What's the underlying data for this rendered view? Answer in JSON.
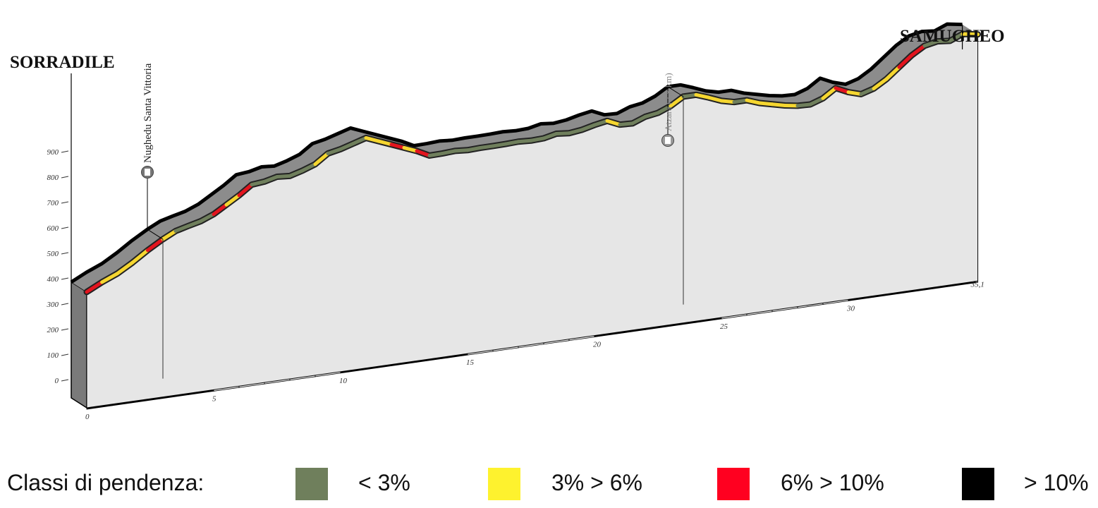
{
  "chart_data": {
    "type": "area",
    "x_unit": "km",
    "y_ticks": [
      0,
      100,
      200,
      300,
      400,
      500,
      600,
      700,
      800,
      900
    ],
    "x_ticks": [
      0,
      5,
      10,
      15,
      20,
      25,
      30
    ],
    "x_end_label": "35,1",
    "x_max": 35.1,
    "points": [
      {
        "x": 0.0,
        "y": 345,
        "grade": "red"
      },
      {
        "x": 0.6,
        "y": 375,
        "grade": "yellow"
      },
      {
        "x": 1.2,
        "y": 400,
        "grade": "yellow"
      },
      {
        "x": 1.8,
        "y": 435,
        "grade": "yellow"
      },
      {
        "x": 2.4,
        "y": 475,
        "grade": "red"
      },
      {
        "x": 3.0,
        "y": 510,
        "grade": "yellow"
      },
      {
        "x": 3.5,
        "y": 535,
        "grade": "green"
      },
      {
        "x": 4.0,
        "y": 548,
        "grade": "green"
      },
      {
        "x": 4.5,
        "y": 560,
        "grade": "green"
      },
      {
        "x": 5.0,
        "y": 580,
        "grade": "red"
      },
      {
        "x": 5.5,
        "y": 610,
        "grade": "yellow"
      },
      {
        "x": 6.0,
        "y": 640,
        "grade": "red"
      },
      {
        "x": 6.5,
        "y": 675,
        "grade": "green"
      },
      {
        "x": 7.0,
        "y": 680,
        "grade": "green"
      },
      {
        "x": 7.5,
        "y": 692,
        "grade": "green"
      },
      {
        "x": 8.0,
        "y": 688,
        "grade": "green"
      },
      {
        "x": 8.5,
        "y": 702,
        "grade": "green"
      },
      {
        "x": 9.0,
        "y": 720,
        "grade": "yellow"
      },
      {
        "x": 9.5,
        "y": 755,
        "grade": "green"
      },
      {
        "x": 10.0,
        "y": 765,
        "grade": "green"
      },
      {
        "x": 10.5,
        "y": 780,
        "grade": "green"
      },
      {
        "x": 11.0,
        "y": 795,
        "grade": "yellow"
      },
      {
        "x": 11.5,
        "y": 775,
        "grade": "yellow"
      },
      {
        "x": 12.0,
        "y": 755,
        "grade": "red"
      },
      {
        "x": 12.5,
        "y": 735,
        "grade": "yellow"
      },
      {
        "x": 13.0,
        "y": 715,
        "grade": "red"
      },
      {
        "x": 13.5,
        "y": 690,
        "grade": "green"
      },
      {
        "x": 14.0,
        "y": 691,
        "grade": "green"
      },
      {
        "x": 14.5,
        "y": 694,
        "grade": "green"
      },
      {
        "x": 15.0,
        "y": 690,
        "grade": "green"
      },
      {
        "x": 15.5,
        "y": 692,
        "grade": "green"
      },
      {
        "x": 16.0,
        "y": 692,
        "grade": "green"
      },
      {
        "x": 16.5,
        "y": 693,
        "grade": "green"
      },
      {
        "x": 17.0,
        "y": 695,
        "grade": "green"
      },
      {
        "x": 17.5,
        "y": 692,
        "grade": "green"
      },
      {
        "x": 18.0,
        "y": 694,
        "grade": "green"
      },
      {
        "x": 18.5,
        "y": 705,
        "grade": "green"
      },
      {
        "x": 19.0,
        "y": 700,
        "grade": "green"
      },
      {
        "x": 19.5,
        "y": 706,
        "grade": "green"
      },
      {
        "x": 20.0,
        "y": 718,
        "grade": "green"
      },
      {
        "x": 20.5,
        "y": 727,
        "grade": "yellow"
      },
      {
        "x": 21.0,
        "y": 705,
        "grade": "green"
      },
      {
        "x": 21.5,
        "y": 703,
        "grade": "green"
      },
      {
        "x": 22.0,
        "y": 722,
        "grade": "green"
      },
      {
        "x": 22.5,
        "y": 730,
        "grade": "green"
      },
      {
        "x": 23.0,
        "y": 750,
        "grade": "yellow"
      },
      {
        "x": 23.5,
        "y": 780,
        "grade": "green"
      },
      {
        "x": 24.0,
        "y": 780,
        "grade": "yellow"
      },
      {
        "x": 24.5,
        "y": 762,
        "grade": "yellow"
      },
      {
        "x": 25.0,
        "y": 742,
        "grade": "yellow"
      },
      {
        "x": 25.5,
        "y": 730,
        "grade": "green"
      },
      {
        "x": 26.0,
        "y": 730,
        "grade": "yellow"
      },
      {
        "x": 26.5,
        "y": 712,
        "grade": "yellow"
      },
      {
        "x": 27.0,
        "y": 700,
        "grade": "yellow"
      },
      {
        "x": 27.5,
        "y": 688,
        "grade": "yellow"
      },
      {
        "x": 28.0,
        "y": 680,
        "grade": "green"
      },
      {
        "x": 28.5,
        "y": 678,
        "grade": "green"
      },
      {
        "x": 29.0,
        "y": 695,
        "grade": "yellow"
      },
      {
        "x": 29.5,
        "y": 728,
        "grade": "red"
      },
      {
        "x": 30.0,
        "y": 705,
        "grade": "yellow"
      },
      {
        "x": 30.5,
        "y": 690,
        "grade": "green"
      },
      {
        "x": 31.0,
        "y": 705,
        "grade": "yellow"
      },
      {
        "x": 31.5,
        "y": 735,
        "grade": "yellow"
      },
      {
        "x": 32.0,
        "y": 775,
        "grade": "red"
      },
      {
        "x": 32.5,
        "y": 815,
        "grade": "red"
      },
      {
        "x": 33.0,
        "y": 845,
        "grade": "green"
      },
      {
        "x": 33.5,
        "y": 855,
        "grade": "green"
      },
      {
        "x": 34.0,
        "y": 850,
        "grade": "green"
      },
      {
        "x": 34.5,
        "y": 870,
        "grade": "yellow"
      },
      {
        "x": 35.1,
        "y": 860,
        "grade": "yellow"
      }
    ],
    "start_label": "SORRADILE",
    "finish_label": "SAMUGHEO",
    "waypoints": [
      {
        "km": 3.0,
        "label": "Nughedu Santa Vittoria",
        "style": "normal"
      },
      {
        "km": 23.5,
        "label": "Atzara (2,8 km)",
        "style": "grey"
      }
    ],
    "grade_colors": {
      "green": "#6f7f5c",
      "yellow": "#f5d630",
      "red": "#e3141e",
      "black": "#000000"
    },
    "profile_colors": {
      "front": "#e6e6e6",
      "top": "#8c8c8c",
      "side": "#7a7a7a",
      "outline": "#000000"
    }
  },
  "legend": {
    "title": "Classi di pendenza:",
    "items": [
      {
        "label": "< 3%",
        "color": "#6f7f5c"
      },
      {
        "label": "3% > 6%",
        "color": "#fef22e"
      },
      {
        "label": "6% > 10%",
        "color": "#ff0020"
      },
      {
        "label": "> 10%",
        "color": "#000000"
      }
    ]
  }
}
